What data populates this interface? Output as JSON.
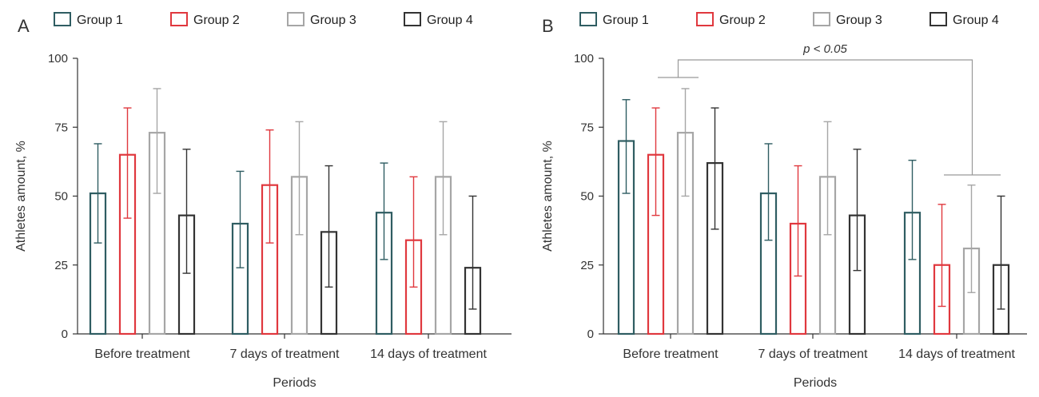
{
  "chart_data": [
    {
      "panel_label": "A",
      "type": "bar",
      "categories": [
        "Before treatment",
        "7 days of treatment",
        "14 days of treatment"
      ],
      "series": [
        {
          "name": "Group 1",
          "color": "#2f5d62",
          "values": [
            51,
            40,
            44
          ],
          "err_low": [
            33,
            24,
            27
          ],
          "err_high": [
            69,
            59,
            62
          ]
        },
        {
          "name": "Group 2",
          "color": "#e0383e",
          "values": [
            65,
            54,
            34
          ],
          "err_low": [
            42,
            33,
            17
          ],
          "err_high": [
            82,
            74,
            57
          ]
        },
        {
          "name": "Group 3",
          "color": "#a6a6a6",
          "values": [
            73,
            57,
            57
          ],
          "err_low": [
            51,
            36,
            36
          ],
          "err_high": [
            89,
            77,
            77
          ]
        },
        {
          "name": "Group 4",
          "color": "#333333",
          "values": [
            43,
            37,
            24
          ],
          "err_low": [
            22,
            17,
            9
          ],
          "err_high": [
            67,
            61,
            50
          ]
        }
      ],
      "xlabel": "Periods",
      "ylabel": "Athletes amount, %",
      "ylim": [
        0,
        100
      ],
      "yticks": [
        "0",
        "25",
        "50",
        "75",
        "100"
      ],
      "legend_position": "top",
      "annotations": []
    },
    {
      "panel_label": "B",
      "type": "bar",
      "categories": [
        "Before treatment",
        "7 days of treatment",
        "14 days of treatment"
      ],
      "series": [
        {
          "name": "Group 1",
          "color": "#2f5d62",
          "values": [
            70,
            51,
            44
          ],
          "err_low": [
            51,
            34,
            27
          ],
          "err_high": [
            85,
            69,
            63
          ]
        },
        {
          "name": "Group 2",
          "color": "#e0383e",
          "values": [
            65,
            40,
            25
          ],
          "err_low": [
            43,
            21,
            10
          ],
          "err_high": [
            82,
            61,
            47
          ]
        },
        {
          "name": "Group 3",
          "color": "#a6a6a6",
          "values": [
            73,
            57,
            31
          ],
          "err_low": [
            50,
            36,
            15
          ],
          "err_high": [
            89,
            77,
            54
          ]
        },
        {
          "name": "Group 4",
          "color": "#333333",
          "values": [
            62,
            43,
            25
          ],
          "err_low": [
            38,
            23,
            9
          ],
          "err_high": [
            82,
            67,
            50
          ]
        }
      ],
      "xlabel": "Periods",
      "ylabel": "Athletes amount, %",
      "ylim": [
        0,
        100
      ],
      "yticks": [
        "0",
        "25",
        "50",
        "75",
        "100"
      ],
      "legend_position": "top",
      "annotations": [
        {
          "text": "p < 0.05",
          "type": "significance-bracket",
          "from_category": "Before treatment",
          "to_category": "14 days of treatment"
        }
      ]
    }
  ]
}
